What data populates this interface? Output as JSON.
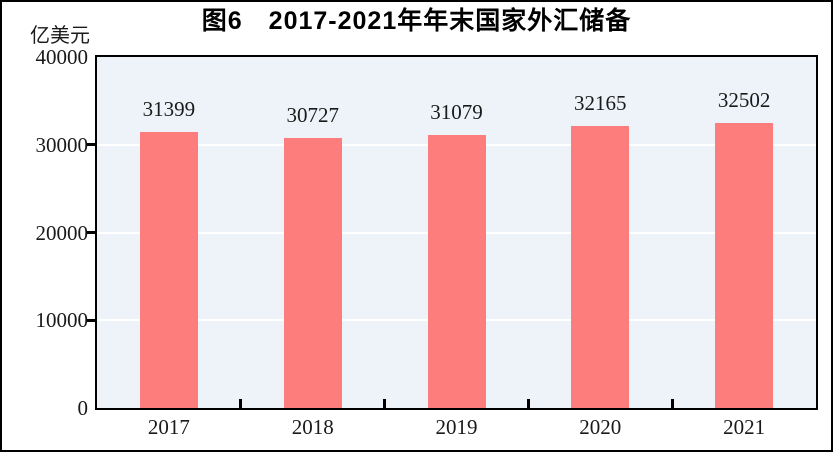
{
  "figure": {
    "title": "图6　2017-2021年年末国家外汇储备",
    "unit_label": "亿美元"
  },
  "chart_data": {
    "type": "bar",
    "title": "图6　2017-2021年年末国家外汇储备",
    "unit_label": "亿美元",
    "categories": [
      "2017",
      "2018",
      "2019",
      "2020",
      "2021"
    ],
    "values": [
      31399,
      30727,
      31079,
      32165,
      32502
    ],
    "data_labels": [
      31399,
      30727,
      31079,
      32165,
      32502
    ],
    "xlabel": "",
    "ylabel": "亿美元",
    "ylim": [
      0,
      40000
    ],
    "yticks": [
      0,
      10000,
      20000,
      30000,
      40000
    ],
    "grid": true,
    "legend_position": "none",
    "colors": {
      "bar": "#FD7C7C",
      "plot_background": "#EDF3F8",
      "gridline": "#FFFFFF",
      "axis": "#000000",
      "text": "#1a1a1a"
    }
  }
}
